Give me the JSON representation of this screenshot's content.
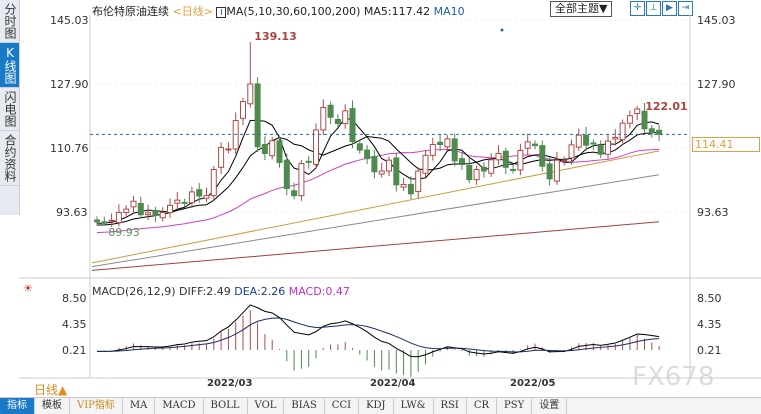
{
  "side_tabs": [
    "分时图",
    "K线图",
    "闪电图",
    "合约资料"
  ],
  "header": {
    "instrument": "布伦特原油连续",
    "period": "<日线>",
    "ma_label": "MA(5,10,30,60,100,200)",
    "ma5": "MA5:117.42",
    "ma10": "MA10"
  },
  "theme_select": "全部主题▼",
  "icon_buttons": [
    "crosshair-icon",
    "zoom-in-icon",
    "play-icon",
    "jump-end-icon"
  ],
  "price_axis": [
    "145.03",
    "127.90",
    "110.76",
    "93.63"
  ],
  "current_price": "114.41",
  "macd_header": {
    "name": "MACD(26,12,9)",
    "diff": "DIFF:2.49",
    "dea": "DEA:2.26",
    "macd": "MACD:0.47"
  },
  "macd_axis": [
    "8.50",
    "4.35",
    "0.21"
  ],
  "period_button": "日线▲",
  "date_labels": [
    "2022/03",
    "2022/04",
    "2022/05"
  ],
  "watermark": "FX678",
  "toolbar": [
    "指标",
    "模板",
    "VIP指标",
    "MA",
    "MACD",
    "BOLL",
    "VOL",
    "BIAS",
    "CCI",
    "KDJ",
    "LW&",
    "RSI",
    "CR",
    "PSY",
    "设置"
  ],
  "colors": {
    "up": "#b04a4a",
    "down": "#4f8a4f",
    "ma5": "#000000",
    "ma10": "#000000",
    "ma30": "#d040c0",
    "ma60": "#d09a40",
    "ma100": "#888888",
    "ma200": "#a04040",
    "accent": "#1a7ac7"
  },
  "chart_data": {
    "type": "candlestick",
    "price_range": [
      85,
      145.03
    ],
    "marked_high": "139.13",
    "marked_low": "89.93",
    "last_high": "122.01",
    "close": [
      91.0,
      90.8,
      91.4,
      93.5,
      94.4,
      96.5,
      92.9,
      93.4,
      92.7,
      93.5,
      95.4,
      96.8,
      96.1,
      99.0,
      97.9,
      98.0,
      105.0,
      110.9,
      110.5,
      118.1,
      123.2,
      127.9,
      111.1,
      109.3,
      112.7,
      106.9,
      99.9,
      98.0,
      106.6,
      107.0,
      115.6,
      121.6,
      119.0,
      117.3,
      120.7,
      112.5,
      110.2,
      107.9,
      104.4,
      104.6,
      107.5,
      100.9,
      101.0,
      98.5,
      104.6,
      108.8,
      111.7,
      111.7,
      113.2,
      107.3,
      106.7,
      102.3,
      105.0,
      104.6,
      107.6,
      109.3,
      105.6,
      104.9,
      110.1,
      112.4,
      111.4,
      105.9,
      102.5,
      107.5,
      107.5,
      111.6,
      114.2,
      111.5,
      112.0,
      109.1,
      112.6,
      113.6,
      117.4,
      119.4,
      121.2,
      115.9,
      114.9,
      114.41
    ],
    "ma60": [
      80,
      110
    ],
    "ma100": [
      79,
      103.6
    ],
    "ma200": [
      78,
      91
    ]
  }
}
